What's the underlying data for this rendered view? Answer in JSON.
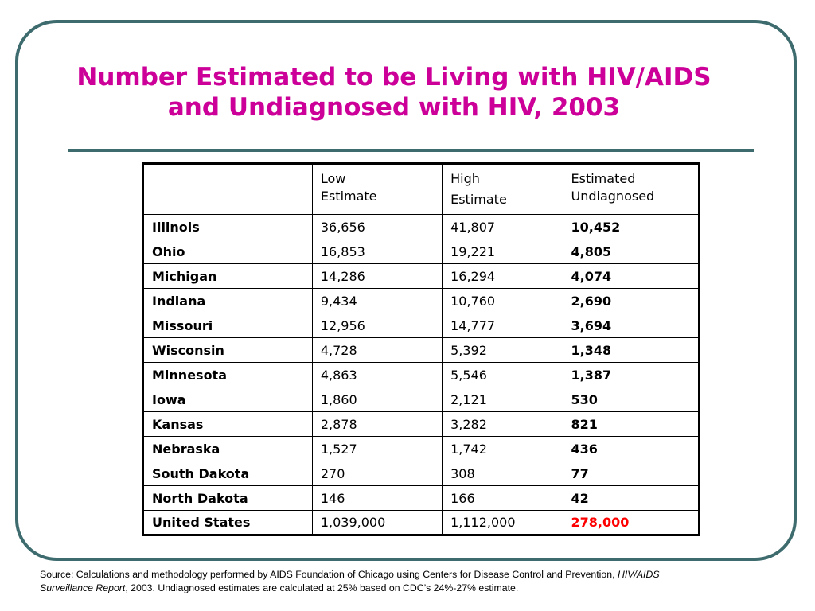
{
  "title": {
    "line1": "Number Estimated to be Living with HIV/AIDS",
    "line2": "and Undiagnosed with HIV, 2003"
  },
  "table": {
    "headers": {
      "state": "",
      "low_line1": "Low",
      "low_line2": "Estimate",
      "high_line1": "High",
      "high_line2": "Estimate",
      "undiag_line1": "Estimated",
      "undiag_line2": "Undiagnosed"
    },
    "rows": [
      {
        "state": "Illinois",
        "low": "36,656",
        "high": "41,807",
        "undiagnosed": "10,452"
      },
      {
        "state": "Ohio",
        "low": "16,853",
        "high": "19,221",
        "undiagnosed": "4,805"
      },
      {
        "state": "Michigan",
        "low": "14,286",
        "high": "16,294",
        "undiagnosed": "4,074"
      },
      {
        "state": "Indiana",
        "low": "9,434",
        "high": "10,760",
        "undiagnosed": "2,690"
      },
      {
        "state": "Missouri",
        "low": "12,956",
        "high": "14,777",
        "undiagnosed": "3,694"
      },
      {
        "state": "Wisconsin",
        "low": "4,728",
        "high": "5,392",
        "undiagnosed": "1,348"
      },
      {
        "state": "Minnesota",
        "low": "4,863",
        "high": "5,546",
        "undiagnosed": "1,387"
      },
      {
        "state": "Iowa",
        "low": "1,860",
        "high": "2,121",
        "undiagnosed": "530"
      },
      {
        "state": "Kansas",
        "low": "2,878",
        "high": "3,282",
        "undiagnosed": "821"
      },
      {
        "state": "Nebraska",
        "low": "1,527",
        "high": "1,742",
        "undiagnosed": "436"
      },
      {
        "state": "South Dakota",
        "low": "270",
        "high": "308",
        "undiagnosed": "77"
      },
      {
        "state": "North Dakota",
        "low": "146",
        "high": "166",
        "undiagnosed": "42"
      },
      {
        "state": "United States",
        "low": "1,039,000",
        "high": "1,112,000",
        "undiagnosed": "278,000"
      }
    ]
  },
  "source": {
    "part1": "Source: Calculations and methodology performed by AIDS Foundation of Chicago using Centers for Disease Control and Prevention, ",
    "report_name_1": "HIV/AIDS",
    "report_name_2": "Surveillance Report",
    "part2": ", 2003.  Undiagnosed estimates are calculated at 25% based on CDC’s 24%-27% estimate."
  },
  "colors": {
    "title": "#cc0099",
    "frame": "#3d6b6e",
    "total_highlight": "#ff0000"
  }
}
